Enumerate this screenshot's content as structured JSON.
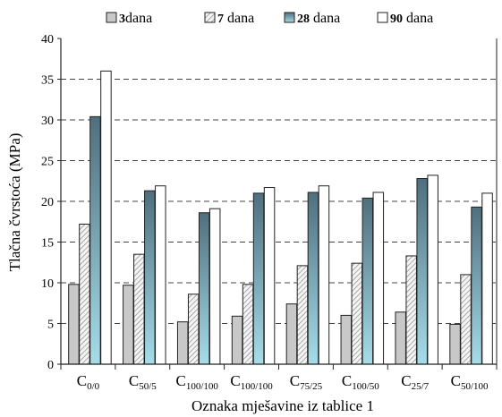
{
  "chart_data": {
    "type": "bar",
    "ylabel": "Tlačna čvrstoća (MPa)",
    "xlabel": "Oznaka mješavine iz tablice 1",
    "ylim": [
      0,
      40
    ],
    "yticks": [
      0,
      5,
      10,
      15,
      20,
      25,
      30,
      35,
      40
    ],
    "grid": "horizontal dashed",
    "legend_position": "top",
    "categories": [
      {
        "main": "C",
        "sub": "0/0"
      },
      {
        "main": "C",
        "sub": "50/5"
      },
      {
        "main": "C",
        "sub": "100/100"
      },
      {
        "main": "C",
        "sub": "100/100"
      },
      {
        "main": "C",
        "sub": "75/25"
      },
      {
        "main": "C",
        "sub": "100/50"
      },
      {
        "main": "C",
        "sub": "25/7"
      },
      {
        "main": "C",
        "sub": "50/100"
      }
    ],
    "series": [
      {
        "name": "3dana",
        "legend_num": "3",
        "legend_word": "dana",
        "pattern": "gray",
        "values": [
          9.8,
          9.7,
          5.2,
          5.9,
          7.4,
          6.0,
          6.4,
          4.9
        ]
      },
      {
        "name": "7 dana",
        "legend_num": "7",
        "legend_word": " dana",
        "pattern": "hatch",
        "values": [
          17.2,
          13.5,
          8.6,
          9.8,
          12.1,
          12.4,
          13.3,
          11.0
        ]
      },
      {
        "name": "28 dana",
        "legend_num": "28",
        "legend_word": " dana",
        "pattern": "teal",
        "values": [
          30.4,
          21.3,
          18.6,
          21.0,
          21.1,
          20.4,
          22.8,
          19.3
        ]
      },
      {
        "name": "90 dana",
        "legend_num": "90",
        "legend_word": " dana",
        "pattern": "white",
        "values": [
          36.0,
          21.9,
          19.1,
          21.7,
          21.9,
          21.1,
          23.2,
          21.0
        ]
      }
    ],
    "colors": {
      "gray": "#c8c8c8",
      "hatch_bg": "#f4f4f4",
      "hatch_line": "#8a8a8a",
      "teal_top": "#4f6f7e",
      "teal_bottom": "#a6dce9",
      "white": "#ffffff",
      "outline": "#222222",
      "grid": "#444444"
    }
  }
}
